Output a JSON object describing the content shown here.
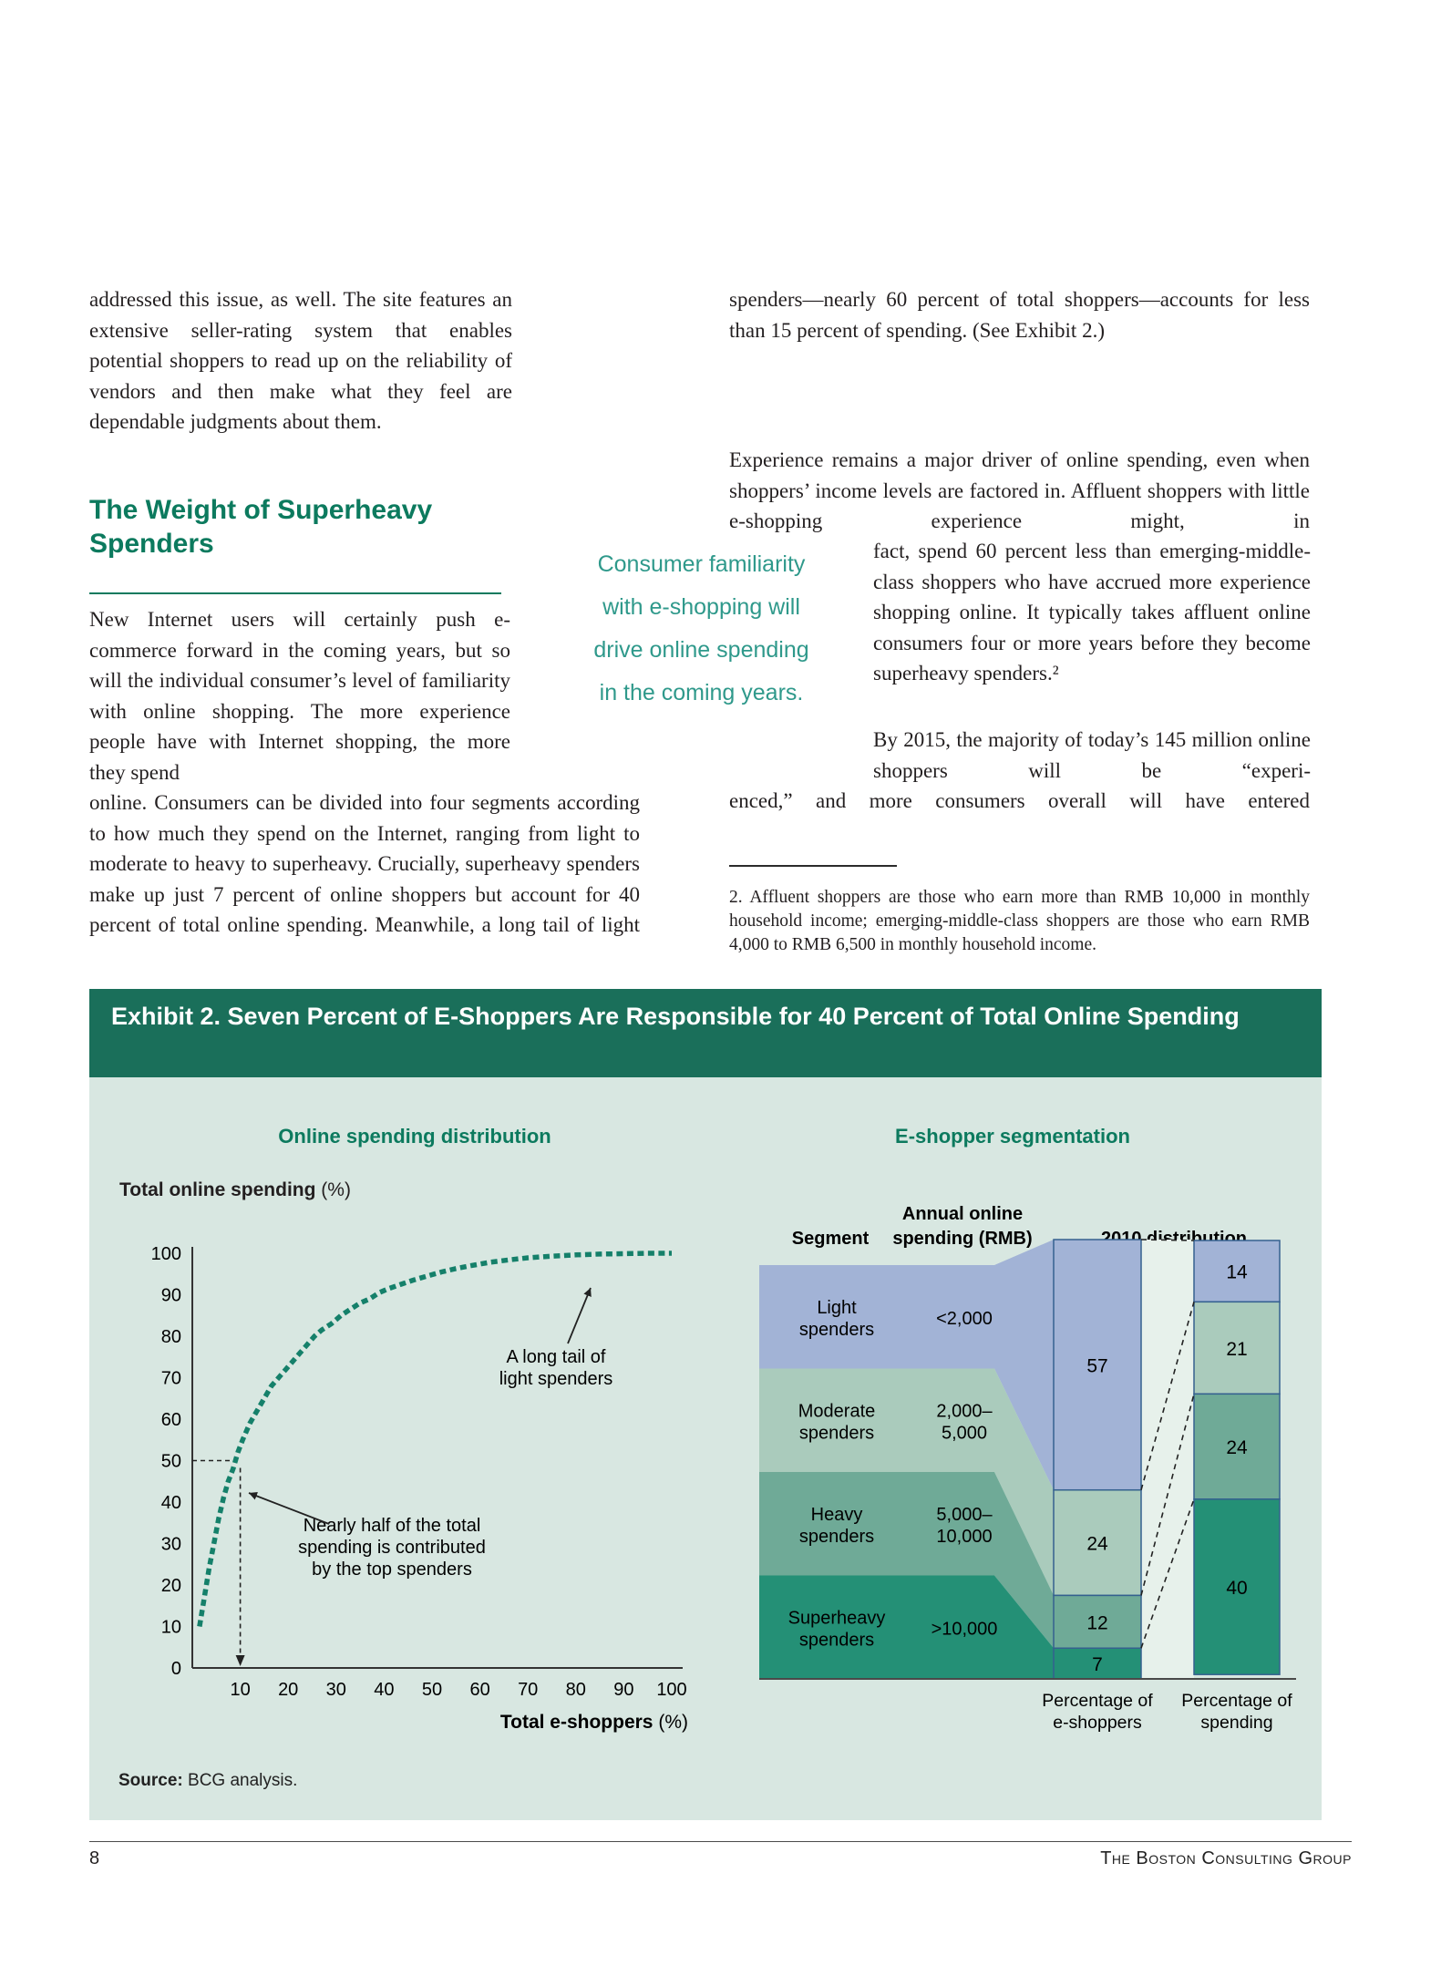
{
  "page": {
    "number": "8",
    "footer_right": "The Boston Consulting Group"
  },
  "article": {
    "para1": "addressed this issue, as well. The site features an extensive seller-rating system that enables potential shoppers to read up on the reliability of vendors and then make what they feel are dependable judgments about them.",
    "heading": "The Weight of Superheavy Spenders",
    "para2_narrow": "New Internet users will certainly push e-commerce forward in the coming years, but so will the individual consumer’s level of familiarity with online shopping. The more experience people have with Internet shopping, the more they spend",
    "para2_wide": "online. Consumers can be divided into four segments according to how much they spend on the Internet, ranging from light to moderate to heavy to superheavy. Crucially, superheavy spenders make up just 7 percent of online shoppers but account for 40 percent of total online spending. Meanwhile, a long tail of light",
    "pull_quote_lines": [
      "Consumer familiarity",
      "with e-shopping will",
      "drive online spending",
      "in the coming years."
    ],
    "right_para1": "spenders—nearly 60 percent of total shoppers—accounts for less than 15 percent of spending. (See Exhibit 2.)",
    "right_para2": "Experience remains a major driver of online spending, even when shoppers’ income levels are factored in. Affluent shoppers with little e-shopping experience might, in",
    "right_para3": "fact, spend 60 percent less than emerging-middle-class shoppers who have accrued more experience shopping online. It typically takes affluent online consumers four or more years before they become superheavy spenders.²",
    "right_para4": "By 2015, the majority of today’s 145 million online shoppers will be “experi-",
    "right_para5": "enced,” and more consumers overall will have entered",
    "footnote": "2. Affluent shoppers are those who earn more than RMB 10,000 in monthly household income; emerging-middle-class shoppers are those who earn RMB 4,000 to RMB 6,500 in monthly household income."
  },
  "exhibit": {
    "title": "Exhibit 2. Seven Percent of E-Shoppers Are Responsible for 40 Percent of Total Online Spending",
    "source_label": "Source:",
    "source_text": "BCG analysis."
  },
  "chart_data": [
    {
      "type": "scatter",
      "title": "Online spending distribution",
      "ylabel": "Total online spending",
      "ylabel_unit": " (%)",
      "xlabel": "Total e-shoppers",
      "xlabel_unit": " (%)",
      "xlim": [
        0,
        100
      ],
      "ylim": [
        0,
        100
      ],
      "x_ticks": [
        10,
        20,
        30,
        40,
        50,
        60,
        70,
        80,
        90,
        100
      ],
      "y_ticks": [
        0,
        10,
        20,
        30,
        40,
        50,
        60,
        70,
        80,
        90,
        100
      ],
      "grid": false,
      "line_color": "#15806a",
      "series": [
        {
          "name": "Cumulative share of total online spending vs. share of e-shoppers",
          "points": [
            [
              1.5,
              10
            ],
            [
              2.5,
              17
            ],
            [
              3.5,
              24
            ],
            [
              4.5,
              30
            ],
            [
              5.5,
              36
            ],
            [
              6.5,
              41
            ],
            [
              7.5,
              45
            ],
            [
              8.5,
              48
            ],
            [
              9.5,
              52
            ],
            [
              10.5,
              55
            ],
            [
              12,
              59
            ],
            [
              13.5,
              62
            ],
            [
              15,
              65
            ],
            [
              16.5,
              68
            ],
            [
              18,
              70
            ],
            [
              19.5,
              72
            ],
            [
              21,
              74
            ],
            [
              22.5,
              76
            ],
            [
              24,
              78
            ],
            [
              25.5,
              80
            ],
            [
              27,
              81.5
            ],
            [
              29,
              83
            ],
            [
              31,
              85
            ],
            [
              33,
              86.5
            ],
            [
              35,
              88
            ],
            [
              37,
              89
            ],
            [
              39,
              90.5
            ],
            [
              41,
              91.5
            ],
            [
              43.5,
              92.5
            ],
            [
              46,
              93.5
            ],
            [
              49,
              94.5
            ],
            [
              52,
              95.5
            ],
            [
              55,
              96.3
            ],
            [
              58,
              97
            ],
            [
              62,
              97.8
            ],
            [
              66,
              98.4
            ],
            [
              70,
              98.9
            ],
            [
              75,
              99.3
            ],
            [
              80,
              99.6
            ],
            [
              85,
              99.8
            ],
            [
              90,
              99.9
            ],
            [
              95,
              100
            ],
            [
              100,
              100
            ]
          ]
        }
      ],
      "reference_point": {
        "x": 10,
        "y": 50
      },
      "annotations": [
        {
          "id": "long-tail",
          "lines": [
            "A long tail of",
            "light spenders"
          ]
        },
        {
          "id": "top-spenders",
          "lines": [
            "Nearly half of the total",
            "spending is contributed",
            "by the top spenders"
          ]
        }
      ]
    },
    {
      "type": "segmented-funnel-stacked-bar",
      "title": "E-shopper segmentation",
      "columns": [
        [
          "Segment"
        ],
        [
          "Annual online",
          "spending (RMB)"
        ],
        [
          "2010 distribution"
        ]
      ],
      "segments": [
        {
          "label": "Light spenders",
          "label_lines": [
            "Light",
            "spenders"
          ],
          "spending": "<2,000",
          "spending_lines": [
            "<2,000"
          ],
          "pct_eshoppers": 57,
          "pct_spending": 14,
          "color": "#a2b3d6"
        },
        {
          "label": "Moderate spenders",
          "label_lines": [
            "Moderate",
            "spenders"
          ],
          "spending": "2,000–5,000",
          "spending_lines": [
            "2,000–",
            "5,000"
          ],
          "pct_eshoppers": 24,
          "pct_spending": 21,
          "color": "#aacbbc"
        },
        {
          "label": "Heavy spenders",
          "label_lines": [
            "Heavy",
            "spenders"
          ],
          "spending": "5,000–10,000",
          "spending_lines": [
            "5,000–",
            "10,000"
          ],
          "pct_eshoppers": 12,
          "pct_spending": 24,
          "color": "#6faa97"
        },
        {
          "label": "Superheavy spenders",
          "label_lines": [
            "Superheavy",
            "spenders"
          ],
          "spending": ">10,000",
          "spending_lines": [
            ">10,000"
          ],
          "pct_eshoppers": 7,
          "pct_spending": 40,
          "color": "#249076"
        }
      ],
      "bar_labels": [
        [
          "Percentage of",
          "e-shoppers"
        ],
        [
          "Percentage of",
          "spending"
        ]
      ],
      "border_color": "#35618f"
    }
  ]
}
